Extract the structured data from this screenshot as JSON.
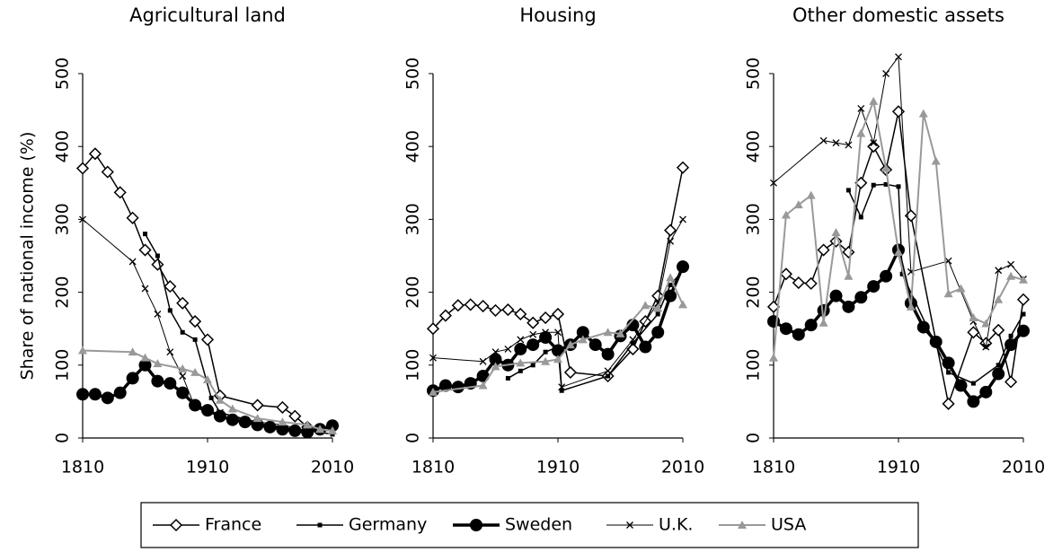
{
  "chart_data": [
    {
      "type": "line",
      "title": "Agricultural land",
      "y_label": "Share of national income (%)",
      "xlim": [
        1810,
        2010
      ],
      "xticks": [
        1810,
        1910,
        2010
      ],
      "ylim": [
        0,
        500
      ],
      "yticks": [
        0,
        100,
        200,
        300,
        400,
        500
      ],
      "series": [
        {
          "name": "France",
          "color": "#000000",
          "marker": "diamond",
          "line_width": 1.5,
          "x": [
            1810,
            1820,
            1830,
            1840,
            1850,
            1860,
            1870,
            1880,
            1890,
            1900,
            1910,
            1920,
            1950,
            1970,
            1980,
            1990,
            2000,
            2010
          ],
          "values": [
            370,
            390,
            365,
            337,
            302,
            258,
            238,
            208,
            185,
            160,
            135,
            58,
            45,
            42,
            30,
            15,
            12,
            15
          ]
        },
        {
          "name": "Germany",
          "color": "#000000",
          "marker": "square",
          "line_width": 1.5,
          "x": [
            1860,
            1870,
            1880,
            1890,
            1900,
            1913,
            1920,
            1930,
            1950,
            1970,
            1990,
            2000,
            2010
          ],
          "values": [
            280,
            250,
            175,
            145,
            135,
            55,
            35,
            30,
            20,
            15,
            10,
            8,
            5
          ]
        },
        {
          "name": "Sweden",
          "color": "#000000",
          "marker": "circle",
          "line_width": 3.5,
          "x": [
            1810,
            1820,
            1830,
            1840,
            1850,
            1860,
            1870,
            1880,
            1890,
            1900,
            1910,
            1920,
            1930,
            1940,
            1950,
            1960,
            1970,
            1980,
            1990,
            2000,
            2010
          ],
          "values": [
            60,
            60,
            55,
            62,
            82,
            100,
            78,
            75,
            62,
            45,
            38,
            30,
            25,
            22,
            18,
            15,
            12,
            10,
            8,
            12,
            17
          ]
        },
        {
          "name": "U.K.",
          "color": "#000000",
          "marker": "cross",
          "line_width": 1,
          "x": [
            1810,
            1850,
            1860,
            1870,
            1880,
            1890,
            1900,
            1910,
            1920,
            1950,
            1970,
            1990,
            2010
          ],
          "values": [
            300,
            242,
            205,
            170,
            118,
            85,
            42,
            35,
            35,
            22,
            18,
            10,
            10
          ]
        },
        {
          "name": "USA",
          "color": "#999999",
          "marker": "triangle",
          "line_width": 2,
          "x": [
            1810,
            1850,
            1860,
            1870,
            1890,
            1900,
            1910,
            1920,
            1930,
            1950,
            1970,
            1990,
            2000,
            2010
          ],
          "values": [
            120,
            118,
            110,
            102,
            95,
            90,
            80,
            52,
            40,
            27,
            22,
            18,
            12,
            10
          ]
        }
      ]
    },
    {
      "type": "line",
      "title": "Housing",
      "xlim": [
        1810,
        2010
      ],
      "xticks": [
        1810,
        1910,
        2010
      ],
      "ylim": [
        0,
        500
      ],
      "yticks": [
        0,
        100,
        200,
        300,
        400,
        500
      ],
      "series": [
        {
          "color": "#000000",
          "marker": "diamond",
          "line_width": 1.5,
          "x": [
            1810,
            1820,
            1830,
            1840,
            1850,
            1860,
            1870,
            1880,
            1890,
            1900,
            1910,
            1920,
            1950,
            1970,
            1980,
            1990,
            2000,
            2010
          ],
          "values": [
            150,
            168,
            182,
            183,
            181,
            175,
            176,
            170,
            158,
            165,
            170,
            90,
            85,
            122,
            160,
            195,
            285,
            371
          ]
        },
        {
          "color": "#000000",
          "marker": "square",
          "line_width": 1.5,
          "x": [
            1870,
            1880,
            1890,
            1900,
            1910,
            1913,
            1950,
            1970,
            1990,
            2000,
            2010
          ],
          "values": [
            82,
            92,
            100,
            118,
            125,
            65,
            85,
            130,
            170,
            210,
            230
          ]
        },
        {
          "color": "#000000",
          "marker": "circle",
          "line_width": 3.5,
          "x": [
            1810,
            1820,
            1830,
            1840,
            1850,
            1860,
            1870,
            1880,
            1890,
            1900,
            1910,
            1920,
            1930,
            1940,
            1950,
            1960,
            1970,
            1980,
            1990,
            2000,
            2010
          ],
          "values": [
            65,
            72,
            70,
            75,
            85,
            108,
            100,
            122,
            128,
            138,
            120,
            128,
            145,
            128,
            115,
            140,
            155,
            125,
            145,
            195,
            235
          ]
        },
        {
          "color": "#000000",
          "marker": "cross",
          "line_width": 1,
          "x": [
            1810,
            1850,
            1860,
            1870,
            1880,
            1890,
            1900,
            1910,
            1913,
            1950,
            1970,
            1990,
            2000,
            2010
          ],
          "values": [
            110,
            105,
            118,
            122,
            135,
            142,
            145,
            145,
            70,
            92,
            135,
            185,
            270,
            300
          ]
        },
        {
          "color": "#999999",
          "marker": "triangle",
          "line_width": 2,
          "x": [
            1810,
            1850,
            1860,
            1880,
            1900,
            1910,
            1920,
            1930,
            1950,
            1960,
            1980,
            1990,
            2000,
            2010
          ],
          "values": [
            63,
            72,
            98,
            103,
            105,
            108,
            128,
            135,
            145,
            143,
            182,
            178,
            220,
            183
          ]
        }
      ]
    },
    {
      "type": "line",
      "title": "Other domestic assets",
      "xlim": [
        1810,
        2010
      ],
      "xticks": [
        1810,
        1910,
        2010
      ],
      "ylim": [
        0,
        500
      ],
      "yticks": [
        0,
        100,
        200,
        300,
        400,
        500
      ],
      "series": [
        {
          "color": "#000000",
          "marker": "diamond",
          "line_width": 1.5,
          "x": [
            1810,
            1820,
            1830,
            1840,
            1850,
            1860,
            1870,
            1880,
            1890,
            1900,
            1910,
            1920,
            1950,
            1970,
            1980,
            1990,
            2000,
            2010
          ],
          "values": [
            180,
            225,
            213,
            212,
            258,
            270,
            255,
            350,
            400,
            368,
            448,
            305,
            47,
            145,
            130,
            148,
            77,
            190
          ]
        },
        {
          "color": "#000000",
          "marker": "square",
          "line_width": 1.5,
          "x": [
            1870,
            1880,
            1890,
            1900,
            1910,
            1913,
            1950,
            1970,
            1990,
            2000,
            2010
          ],
          "values": [
            340,
            303,
            347,
            348,
            345,
            225,
            90,
            75,
            100,
            140,
            170
          ]
        },
        {
          "color": "#000000",
          "marker": "circle",
          "line_width": 3.5,
          "x": [
            1810,
            1820,
            1830,
            1840,
            1850,
            1860,
            1870,
            1880,
            1890,
            1900,
            1910,
            1920,
            1930,
            1940,
            1950,
            1960,
            1970,
            1980,
            1990,
            2000,
            2010
          ],
          "values": [
            160,
            150,
            142,
            155,
            175,
            195,
            180,
            193,
            208,
            222,
            258,
            185,
            152,
            132,
            103,
            72,
            50,
            63,
            88,
            128,
            147
          ]
        },
        {
          "color": "#000000",
          "marker": "cross",
          "line_width": 1,
          "x": [
            1810,
            1850,
            1860,
            1870,
            1880,
            1890,
            1900,
            1910,
            1920,
            1950,
            1970,
            1980,
            1990,
            2000,
            2010
          ],
          "values": [
            350,
            408,
            405,
            402,
            452,
            405,
            500,
            523,
            228,
            243,
            160,
            125,
            230,
            238,
            218
          ]
        },
        {
          "color": "#999999",
          "marker": "triangle",
          "line_width": 2,
          "x": [
            1810,
            1820,
            1830,
            1840,
            1850,
            1860,
            1870,
            1880,
            1890,
            1900,
            1910,
            1920,
            1930,
            1940,
            1950,
            1960,
            1970,
            1980,
            1990,
            2000,
            2010
          ],
          "values": [
            110,
            306,
            320,
            333,
            158,
            282,
            222,
            418,
            462,
            370,
            255,
            180,
            445,
            380,
            198,
            205,
            165,
            157,
            190,
            222,
            217
          ]
        }
      ]
    }
  ]
}
